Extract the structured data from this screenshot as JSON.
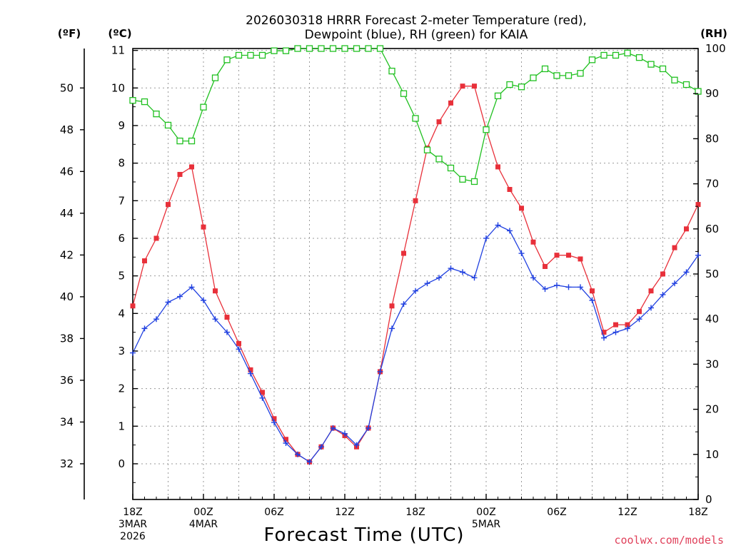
{
  "chart_data": {
    "type": "line",
    "title_line1": "2026030318 HRRR Forecast 2-meter Temperature (red),",
    "title_line2": "Dewpoint (blue), RH (green) for KAIA",
    "xlabel": "Forecast Time (UTC)",
    "credit": "coolwx.com/models",
    "unit_labels": {
      "fahrenheit": "(ºF)",
      "celsius": "(ºC)",
      "rh": "(RH)"
    },
    "x_range_hours": [
      0,
      48
    ],
    "celsius_axis": {
      "range": [
        -0.95,
        11.05
      ],
      "ticks": [
        "0",
        "1",
        "2",
        "3",
        "4",
        "5",
        "6",
        "7",
        "8",
        "9",
        "10",
        "11"
      ]
    },
    "fahrenheit_axis": {
      "ticks": [
        "32",
        "34",
        "36",
        "38",
        "40",
        "42",
        "44",
        "46",
        "48",
        "50"
      ]
    },
    "rh_axis": {
      "range": [
        0,
        100
      ],
      "ticks": [
        "0",
        "10",
        "20",
        "30",
        "40",
        "50",
        "60",
        "70",
        "80",
        "90",
        "100"
      ]
    },
    "x_ticks": [
      {
        "hour": 0,
        "lines": [
          "18Z",
          "3MAR",
          "2026"
        ]
      },
      {
        "hour": 6,
        "lines": [
          "00Z",
          "4MAR"
        ]
      },
      {
        "hour": 12,
        "lines": [
          "06Z"
        ]
      },
      {
        "hour": 18,
        "lines": [
          "12Z"
        ]
      },
      {
        "hour": 24,
        "lines": [
          "18Z"
        ]
      },
      {
        "hour": 30,
        "lines": [
          "00Z",
          "5MAR"
        ]
      },
      {
        "hour": 36,
        "lines": [
          "06Z"
        ]
      },
      {
        "hour": 42,
        "lines": [
          "12Z"
        ]
      },
      {
        "hour": 48,
        "lines": [
          "18Z"
        ]
      }
    ],
    "series": [
      {
        "name": "Temperature (red)",
        "unit": "C",
        "color": "#e8303a",
        "marker": "filled-square",
        "values": [
          4.2,
          5.4,
          6.0,
          6.9,
          7.7,
          7.9,
          6.3,
          4.6,
          3.9,
          3.2,
          2.5,
          1.9,
          1.2,
          0.65,
          0.25,
          0.05,
          0.45,
          0.95,
          0.75,
          0.45,
          0.95,
          2.45,
          4.2,
          5.6,
          7.0,
          8.4,
          9.1,
          9.6,
          10.05,
          10.05,
          8.9,
          7.9,
          7.3,
          6.8,
          5.9,
          5.25,
          5.55,
          5.55,
          5.45,
          4.6,
          3.5,
          3.7,
          3.7,
          4.05,
          4.6,
          5.05,
          5.75,
          6.25,
          6.9
        ]
      },
      {
        "name": "Dewpoint (blue)",
        "unit": "C",
        "color": "#2040e0",
        "marker": "plus",
        "values": [
          2.95,
          3.6,
          3.85,
          4.3,
          4.45,
          4.7,
          4.35,
          3.85,
          3.5,
          3.05,
          2.4,
          1.75,
          1.1,
          0.55,
          0.25,
          0.05,
          0.45,
          0.95,
          0.8,
          0.5,
          0.95,
          2.45,
          3.6,
          4.25,
          4.6,
          4.8,
          4.95,
          5.2,
          5.1,
          4.95,
          6.0,
          6.35,
          6.2,
          5.6,
          4.95,
          4.65,
          4.75,
          4.7,
          4.7,
          4.35,
          3.35,
          3.5,
          3.6,
          3.85,
          4.15,
          4.5,
          4.8,
          5.1,
          5.55
        ]
      },
      {
        "name": "RH (green)",
        "unit": "%",
        "color": "#20c020",
        "marker": "open-square",
        "values": [
          88.5,
          88.2,
          85.5,
          83,
          79.5,
          79.5,
          87,
          93.5,
          97.5,
          98.5,
          98.5,
          98.5,
          99.5,
          99.5,
          100,
          100,
          100,
          100,
          100,
          100,
          100,
          100,
          95,
          90,
          84.5,
          77.5,
          75.5,
          73.5,
          71,
          70.5,
          82,
          89.5,
          92,
          91.5,
          93.5,
          95.5,
          94,
          94,
          94.5,
          97.5,
          98.5,
          98.5,
          99,
          98,
          96.5,
          95.5,
          93,
          92,
          90.5
        ]
      }
    ]
  }
}
